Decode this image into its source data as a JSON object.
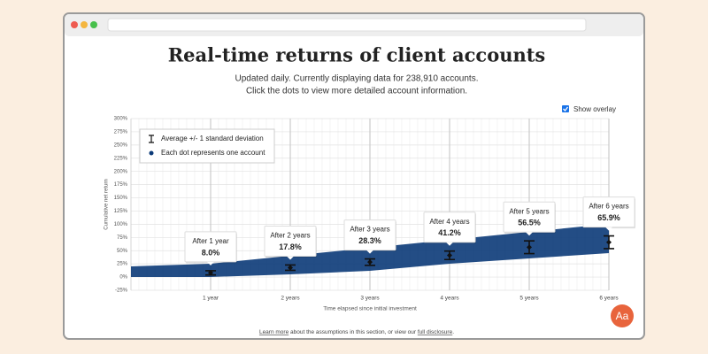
{
  "page": {
    "overlay_label": "Show overlay",
    "footer": {
      "link1": "Learn more",
      "middle": "about the assumptions in this section, or view our",
      "link2": "full disclosure",
      "end": "."
    },
    "font_button": "Aa"
  },
  "chart_data": {
    "type": "errorbar",
    "title": "Real-time returns of client accounts",
    "subtitle": [
      "Updated daily. Currently displaying data for 238,910 accounts.",
      "Click the dots to view more detailed account information."
    ],
    "x_label": "Time elapsed since initial investment",
    "y_label": "Cumulative net return",
    "legend": [
      "Average +/- 1 standard deviation",
      "Each dot represents one account"
    ],
    "legend_position": "upper left",
    "grid": true,
    "x": [
      1,
      2,
      3,
      4,
      5,
      6
    ],
    "annotations": [
      "After 1 year",
      "After 2 years",
      "After 3 years",
      "After 4 years",
      "After 5 years",
      "After 6 years"
    ],
    "series": [
      {
        "name": "Average +/- 1 standard deviation",
        "color": "#111111",
        "values": [
          8.0,
          17.8,
          28.3,
          41.2,
          56.5,
          65.9
        ],
        "value_labels": [
          "8.0%",
          "17.8%",
          "28.3%",
          "41.2%",
          "56.5%",
          "65.9%"
        ],
        "errors": [
          4,
          5,
          6,
          8,
          12,
          12
        ]
      }
    ],
    "cloud_color": "#0b3a78",
    "xlim": [
      0,
      6
    ],
    "xticks": [
      {
        "value": 1,
        "label": "1 year"
      },
      {
        "value": 2,
        "label": "2 years"
      },
      {
        "value": 3,
        "label": "3 years"
      },
      {
        "value": 4,
        "label": "4 years"
      },
      {
        "value": 5,
        "label": "5 years"
      },
      {
        "value": 6,
        "label": "6 years"
      }
    ],
    "ylim": [
      -25,
      300
    ],
    "yticks": [
      {
        "value": -25,
        "label": "-25%"
      },
      {
        "value": 0,
        "label": "0%"
      },
      {
        "value": 25,
        "label": "25%"
      },
      {
        "value": 50,
        "label": "50%"
      },
      {
        "value": 75,
        "label": "75%"
      },
      {
        "value": 100,
        "label": "100%"
      },
      {
        "value": 125,
        "label": "125%"
      },
      {
        "value": 150,
        "label": "150%"
      },
      {
        "value": 175,
        "label": "175%"
      },
      {
        "value": 200,
        "label": "200%"
      },
      {
        "value": 225,
        "label": "225%"
      },
      {
        "value": 250,
        "label": "250%"
      },
      {
        "value": 275,
        "label": "275%"
      },
      {
        "value": 300,
        "label": "300%"
      }
    ]
  }
}
